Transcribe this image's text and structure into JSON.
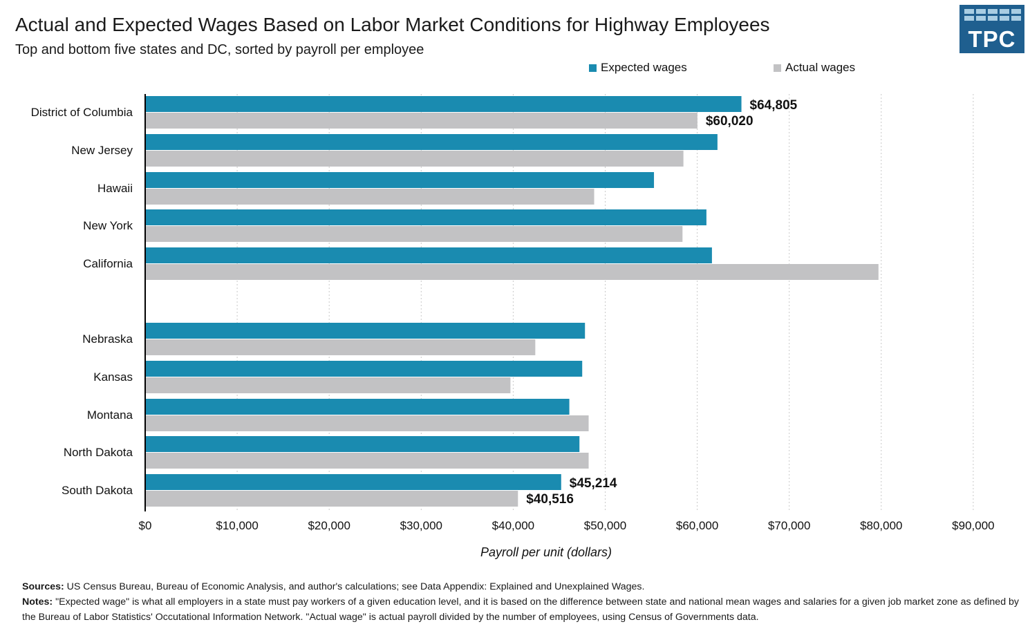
{
  "header": {
    "title": "Actual and Expected Wages Based on Labor Market Conditions for Highway Employees",
    "subtitle": "Top and bottom five states and DC,  sorted by payroll per employee"
  },
  "logo": {
    "text": "TPC",
    "color": "#1f5f8f"
  },
  "colors": {
    "expected": "#1a8bb0",
    "actual": "#c2c2c4",
    "grid": "#c8c8c8"
  },
  "chart_data": {
    "type": "bar",
    "orientation": "horizontal",
    "categories": [
      "District of Columbia",
      "New Jersey",
      "Hawaii",
      "New York",
      "California",
      "Nebraska",
      "Kansas",
      "Montana",
      "North Dakota",
      "South Dakota"
    ],
    "series": [
      {
        "name": "Expected wages",
        "values": [
          64805,
          62200,
          55300,
          61000,
          61600,
          47800,
          47500,
          46100,
          47200,
          45214
        ]
      },
      {
        "name": "Actual wages",
        "values": [
          60020,
          58500,
          48800,
          58400,
          79700,
          42400,
          39700,
          48200,
          48200,
          40516
        ]
      }
    ],
    "data_labels": [
      {
        "series": 0,
        "index": 0,
        "text": "$64,805"
      },
      {
        "series": 1,
        "index": 0,
        "text": "$60,020"
      },
      {
        "series": 0,
        "index": 9,
        "text": "$45,214"
      },
      {
        "series": 1,
        "index": 9,
        "text": "$40,516"
      }
    ],
    "xlabel": "Payroll per unit (dollars)",
    "xlim": [
      0,
      95000
    ],
    "xticks": [
      0,
      10000,
      20000,
      30000,
      40000,
      50000,
      60000,
      70000,
      80000,
      90000
    ],
    "xtick_labels": [
      "$0",
      "$10,000",
      "$20,000",
      "$30,000",
      "$40,000",
      "$50,000",
      "$60,000",
      "$70,000",
      "$80,000",
      "$90,000"
    ],
    "grid": true,
    "legend_position": "top-right"
  },
  "footer": {
    "sources_label": "Sources:",
    "sources_text": " US Census Bureau, Bureau of Economic Analysis, and author's calculations; see Data Appendix: Explained and Unexplained Wages.",
    "notes_label": "Notes:",
    "notes_text": " \"Expected wage\" is what all employers in a state must pay workers of a given education level, and it is based on the difference between state and national mean wages and salaries for a given job market zone as defined by the Bureau of Labor Statistics' Occutational Information Network. \"Actual wage\" is actual payroll divided by the number of employees, using Census of Governments data."
  }
}
